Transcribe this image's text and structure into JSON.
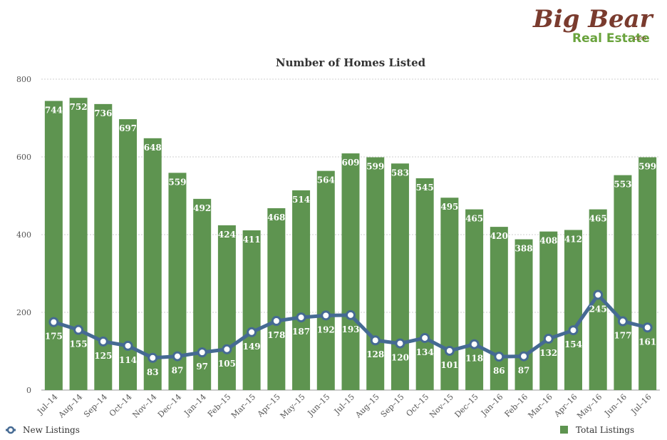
{
  "logo": {
    "line1": "Big Bear",
    "line2": "Real Estate",
    "suffix": ".com"
  },
  "chart_data": {
    "type": "bar",
    "title": "Number of Homes Listed",
    "xlabel": "",
    "ylabel": "",
    "ylim": [
      0,
      800
    ],
    "yticks": [
      0,
      200,
      400,
      600,
      800
    ],
    "grid": true,
    "legend_position": "bottom",
    "categories": [
      "Jul–14",
      "Aug–14",
      "Sep–14",
      "Oct–14",
      "Nov–14",
      "Dec–14",
      "Jan–14",
      "Feb–15",
      "Mar–15",
      "Apr–15",
      "May–15",
      "Jun–15",
      "Jul–15",
      "Aug–15",
      "Sep–15",
      "Oct–15",
      "Nov–15",
      "Dec–15",
      "Jan–16",
      "Feb–16",
      "Mar–16",
      "Apr–16",
      "May–16",
      "Jun–16",
      "Jul–16"
    ],
    "series": [
      {
        "name": "Total Listings",
        "type": "bar",
        "color": "#5e9450",
        "values": [
          744,
          752,
          736,
          697,
          648,
          559,
          492,
          424,
          411,
          468,
          514,
          564,
          609,
          599,
          583,
          545,
          495,
          465,
          420,
          388,
          408,
          412,
          465,
          553,
          599
        ]
      },
      {
        "name": "New Listings",
        "type": "line",
        "color": "#456a93",
        "values": [
          175,
          155,
          125,
          114,
          83,
          87,
          97,
          105,
          149,
          178,
          187,
          192,
          193,
          128,
          120,
          134,
          101,
          118,
          86,
          87,
          132,
          154,
          245,
          177,
          161
        ]
      }
    ]
  }
}
